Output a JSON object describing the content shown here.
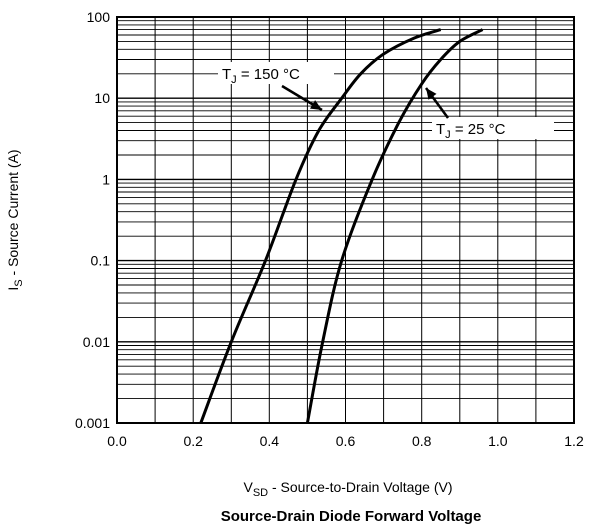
{
  "chart_data": {
    "type": "line",
    "title": "Source-Drain Diode Forward Voltage",
    "xlabel": {
      "main": "V",
      "sub": "SD",
      "rest": " - Source-to-Drain Voltage (V)"
    },
    "ylabel": {
      "main": "I",
      "sub": "S",
      "rest": " - Source Current (A)"
    },
    "xlim": [
      0.0,
      1.2
    ],
    "ylim": [
      0.001,
      100
    ],
    "yscale": "log",
    "grid": true,
    "x_ticks": [
      "0.0",
      "0.2",
      "0.4",
      "0.6",
      "0.8",
      "1.0",
      "1.2"
    ],
    "x_tick_values": [
      0.0,
      0.2,
      0.4,
      0.6,
      0.8,
      1.0,
      1.2
    ],
    "y_ticks": [
      "0.001",
      "0.01",
      "0.1",
      "1",
      "10",
      "100"
    ],
    "y_tick_values": [
      0.001,
      0.01,
      0.1,
      1,
      10,
      100
    ],
    "series": [
      {
        "annotation": {
          "pre": "T",
          "sub": "J",
          "post": " = 150 °C"
        },
        "color": "#000000",
        "points": [
          [
            0.22,
            0.001
          ],
          [
            0.3,
            0.01
          ],
          [
            0.39,
            0.1
          ],
          [
            0.47,
            1
          ],
          [
            0.53,
            4
          ],
          [
            0.59,
            10
          ],
          [
            0.64,
            20
          ],
          [
            0.7,
            35
          ],
          [
            0.78,
            55
          ],
          [
            0.85,
            70
          ]
        ]
      },
      {
        "annotation": {
          "pre": "T",
          "sub": "J",
          "post": " = 25 °C"
        },
        "color": "#000000",
        "points": [
          [
            0.5,
            0.001
          ],
          [
            0.54,
            0.01
          ],
          [
            0.59,
            0.1
          ],
          [
            0.67,
            1
          ],
          [
            0.74,
            5
          ],
          [
            0.8,
            15
          ],
          [
            0.85,
            30
          ],
          [
            0.9,
            50
          ],
          [
            0.96,
            70
          ]
        ]
      }
    ]
  }
}
